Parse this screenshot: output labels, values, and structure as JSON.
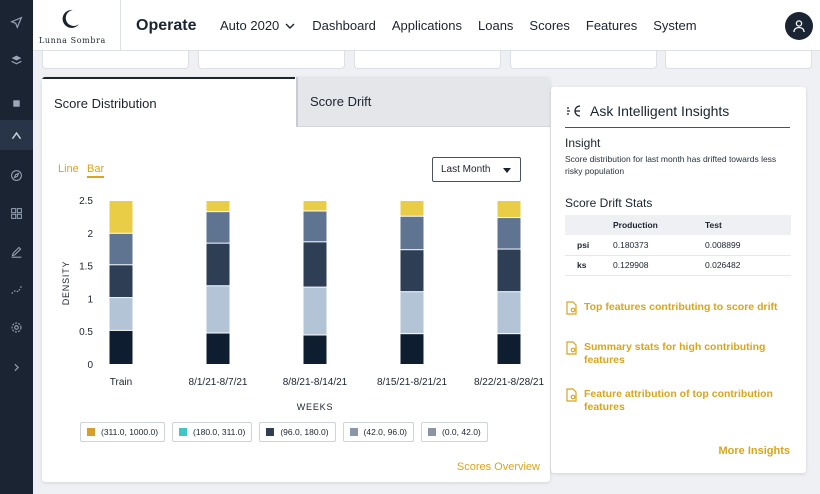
{
  "app": {
    "brand": "Lunna Sombra",
    "title": "Operate"
  },
  "nav": {
    "model": "Auto 2020",
    "items": [
      "Dashboard",
      "Applications",
      "Loans",
      "Scores",
      "Features",
      "System"
    ]
  },
  "rail_icons": [
    "send-icon",
    "layers-icon",
    "square-icon",
    "triangle-icon",
    "compass-icon",
    "grid-icon",
    "edit-icon",
    "trend-icon",
    "settings-icon",
    "expand-icon"
  ],
  "tabs": [
    "Score Distribution",
    "Score Drift"
  ],
  "chart_controls": {
    "line_label": "Line",
    "bar_label": "Bar",
    "period": "Last Month"
  },
  "chart_data": {
    "type": "bar",
    "stacked": true,
    "categories": [
      "Train",
      "8/1/21-8/7/21",
      "8/8/21-8/14/21",
      "8/15/21-8/21/21",
      "8/22/21-8/28/21"
    ],
    "xlabel": "WEEKS",
    "ylabel": "DENSITY",
    "ylim": [
      0,
      2.5
    ],
    "yticks": [
      "0",
      "0.5",
      "1",
      "1.5",
      "2",
      "2.5"
    ],
    "series": [
      {
        "name": "(0.0, 42.0)",
        "color": "#0f1d30",
        "values": [
          0.52,
          0.48,
          0.45,
          0.47,
          0.47
        ]
      },
      {
        "name": "(42.0, 96.0)",
        "color": "#b3c4d6",
        "values": [
          0.5,
          0.72,
          0.73,
          0.64,
          0.64
        ]
      },
      {
        "name": "(96.0, 180.0)",
        "color": "#2e3e54",
        "values": [
          0.5,
          0.65,
          0.69,
          0.64,
          0.65
        ]
      },
      {
        "name": "(180.0, 311.0)",
        "color": "#5e7490",
        "values": [
          0.48,
          0.48,
          0.47,
          0.51,
          0.48
        ]
      },
      {
        "name": "(311.0, 1000.0)",
        "color": "#e9cd47",
        "values": [
          0.5,
          0.17,
          0.16,
          0.24,
          0.26
        ]
      }
    ],
    "legend": [
      {
        "name": "(311.0, 1000.0)",
        "color": "#d89e2a"
      },
      {
        "name": "(180.0, 311.0)",
        "color": "#3ec7c7"
      },
      {
        "name": "(96.0, 180.0)",
        "color": "#2e3e54"
      },
      {
        "name": "(42.0, 96.0)",
        "color": "#8a96a8"
      },
      {
        "name": "(0.0, 42.0)",
        "color": "#8a96a8"
      }
    ]
  },
  "overview_link": "Scores Overview",
  "insights": {
    "title": "Ask Intelligent Insights",
    "insight_heading": "Insight",
    "insight_text": "Score distribution for last month has drifted towards less risky population",
    "stats_heading": "Score Drift Stats",
    "stats_columns": [
      "",
      "Production",
      "Test"
    ],
    "stats_rows": [
      [
        "psi",
        "0.180373",
        "0.008899"
      ],
      [
        "ks",
        "0.129908",
        "0.026482"
      ]
    ],
    "links": [
      "Top features contributing to score drift",
      "Summary stats for high contributing features",
      "Feature attribution of top contribution features"
    ],
    "more": "More Insights"
  },
  "colors": {
    "accent": "#d8a51d",
    "rail": "#1b2433"
  }
}
